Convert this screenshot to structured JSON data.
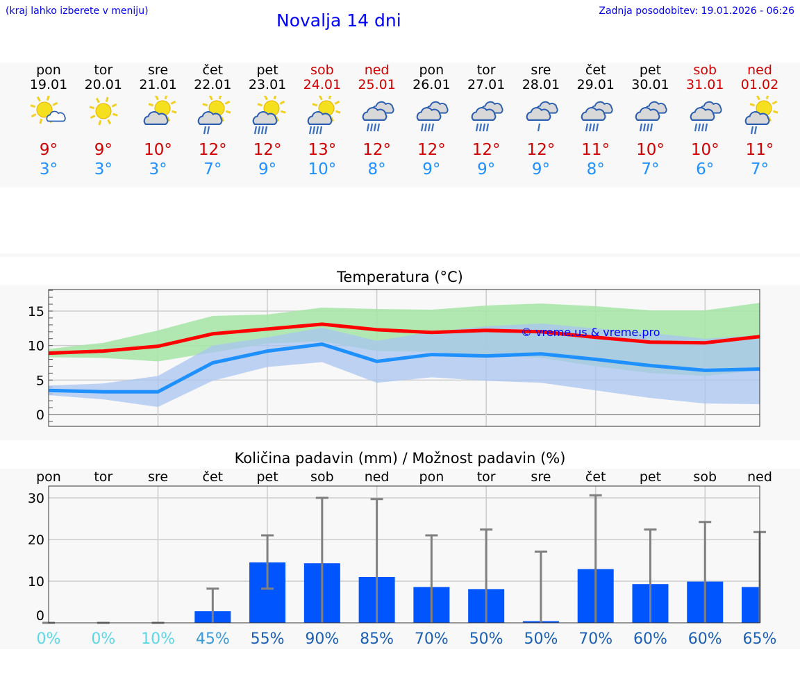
{
  "header": {
    "hint": "(kraj lahko izberete v meniju)",
    "title": "Novalja 14 dni",
    "updated": "Zadnja posodobitev: 19.01.2026 - 06:26"
  },
  "days": [
    {
      "name": "pon",
      "date": "19.01",
      "max": "9°",
      "min": "3°",
      "weekend": false,
      "icon": "sun-small-cloud"
    },
    {
      "name": "tor",
      "date": "20.01",
      "max": "9°",
      "min": "3°",
      "weekend": false,
      "icon": "sun"
    },
    {
      "name": "sre",
      "date": "21.01",
      "max": "10°",
      "min": "3°",
      "weekend": false,
      "icon": "sun-cloud"
    },
    {
      "name": "čet",
      "date": "22.01",
      "max": "12°",
      "min": "7°",
      "weekend": false,
      "icon": "sun-cloud-light-rain"
    },
    {
      "name": "pet",
      "date": "23.01",
      "max": "12°",
      "min": "9°",
      "weekend": false,
      "icon": "sun-cloud-rain"
    },
    {
      "name": "sob",
      "date": "24.01",
      "max": "13°",
      "min": "10°",
      "weekend": true,
      "icon": "sun-cloud-rain"
    },
    {
      "name": "ned",
      "date": "25.01",
      "max": "12°",
      "min": "8°",
      "weekend": true,
      "icon": "clouds-rain"
    },
    {
      "name": "pon",
      "date": "26.01",
      "max": "12°",
      "min": "9°",
      "weekend": false,
      "icon": "clouds-rain"
    },
    {
      "name": "tor",
      "date": "27.01",
      "max": "12°",
      "min": "9°",
      "weekend": false,
      "icon": "clouds-rain"
    },
    {
      "name": "sre",
      "date": "28.01",
      "max": "12°",
      "min": "9°",
      "weekend": false,
      "icon": "clouds-drizzle"
    },
    {
      "name": "čet",
      "date": "29.01",
      "max": "11°",
      "min": "8°",
      "weekend": false,
      "icon": "clouds-rain"
    },
    {
      "name": "pet",
      "date": "30.01",
      "max": "10°",
      "min": "7°",
      "weekend": false,
      "icon": "clouds-rain"
    },
    {
      "name": "sob",
      "date": "31.01",
      "max": "10°",
      "min": "6°",
      "weekend": true,
      "icon": "clouds-rain"
    },
    {
      "name": "ned",
      "date": "01.02",
      "max": "11°",
      "min": "7°",
      "weekend": true,
      "icon": "sun-cloud-light-rain"
    }
  ],
  "colors": {
    "max": "#ff0000",
    "min": "#1e90ff",
    "maxband": "#a8e6a8",
    "minband": "#a9c4f2",
    "bar": "#0055ff",
    "err": "#808080"
  },
  "chart_data": [
    {
      "type": "line",
      "title": "Temperatura (°C)",
      "ylim": [
        -1.7,
        18.2
      ],
      "yticks": [
        0,
        5,
        10,
        15
      ],
      "watermark": "© vreme.us & vreme.pro",
      "x": [
        "19.01",
        "20.01",
        "21.01",
        "22.01",
        "23.01",
        "24.01",
        "25.01",
        "26.01",
        "27.01",
        "28.01",
        "29.01",
        "30.01",
        "31.01",
        "01.02"
      ],
      "series": [
        {
          "name": "max",
          "values": [
            8.9,
            9.2,
            9.9,
            11.7,
            12.4,
            13.1,
            12.3,
            11.9,
            12.2,
            12.0,
            11.2,
            10.5,
            10.4,
            11.3
          ],
          "band_high": [
            9.5,
            10.4,
            12.2,
            14.3,
            14.5,
            15.5,
            15.3,
            15.2,
            15.8,
            16.1,
            15.7,
            15.1,
            15.1,
            16.2
          ],
          "band_low": [
            8.3,
            8.2,
            7.7,
            9.0,
            10.3,
            10.6,
            9.2,
            9.1,
            8.6,
            8.2,
            7.0,
            6.0,
            5.6,
            6.4
          ]
        },
        {
          "name": "min",
          "values": [
            3.5,
            3.3,
            3.3,
            7.5,
            9.2,
            10.2,
            7.7,
            8.7,
            8.5,
            8.8,
            8.0,
            7.1,
            6.4,
            6.6
          ],
          "band_high": [
            4.2,
            4.5,
            5.6,
            10.0,
            11.2,
            12.6,
            10.7,
            12.0,
            12.8,
            13.2,
            12.5,
            11.8,
            11.0,
            11.5
          ],
          "band_low": [
            2.8,
            2.2,
            1.1,
            4.9,
            6.9,
            7.6,
            4.6,
            5.4,
            4.9,
            4.6,
            3.5,
            2.4,
            1.6,
            1.5
          ]
        }
      ]
    },
    {
      "type": "bar",
      "title": "Količina padavin (mm) / Možnost padavin (%)",
      "ylim": [
        0,
        33
      ],
      "yticks": [
        0,
        10,
        20,
        30
      ],
      "categories": [
        "pon",
        "tor",
        "sre",
        "čet",
        "pet",
        "sob",
        "ned",
        "pon",
        "tor",
        "sre",
        "čet",
        "pet",
        "sob",
        "ned"
      ],
      "values": [
        0,
        0,
        0,
        2.8,
        14.5,
        14.3,
        11,
        8.6,
        8.1,
        0.4,
        12.9,
        9.3,
        9.9,
        8.6
      ],
      "err_high": [
        0,
        0,
        0,
        8.2,
        21,
        30,
        29.7,
        21,
        22.4,
        17.1,
        30.6,
        22.4,
        24.2,
        21.8
      ],
      "err_low": [
        0,
        0,
        0,
        0,
        8.2,
        0,
        0,
        0,
        0,
        0,
        0,
        0,
        0,
        0
      ],
      "probability": [
        "0%",
        "0%",
        "10%",
        "45%",
        "55%",
        "90%",
        "85%",
        "70%",
        "50%",
        "50%",
        "70%",
        "60%",
        "60%",
        "65%"
      ],
      "prob_colors": [
        "#5ad8e8",
        "#5ad8e8",
        "#5ad8e8",
        "#3a9ad8",
        "#1a5fb4",
        "#1a5fb4",
        "#1a5fb4",
        "#1a5fb4",
        "#1a5fb4",
        "#1a5fb4",
        "#1a5fb4",
        "#1a5fb4",
        "#1a5fb4",
        "#1a5fb4"
      ]
    }
  ]
}
